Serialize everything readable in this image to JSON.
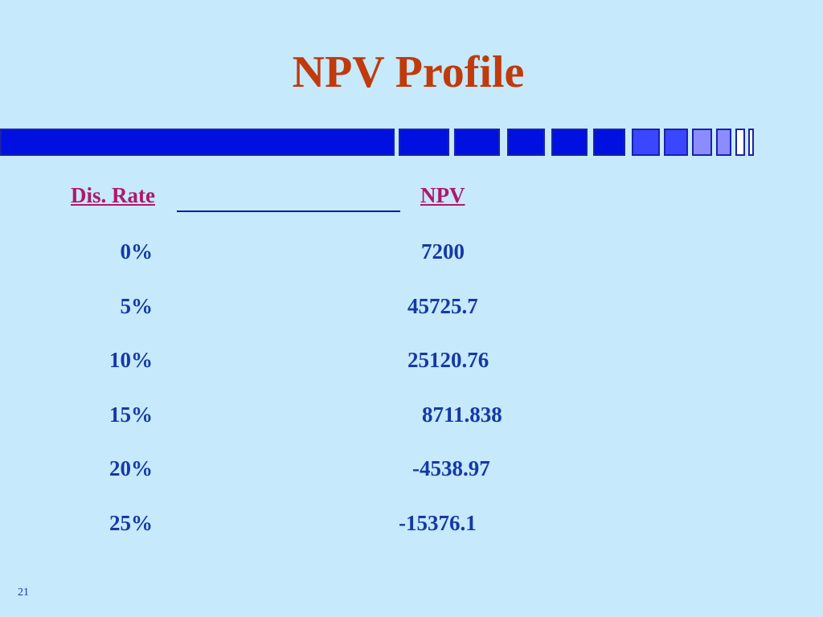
{
  "slide": {
    "title": "NPV Profile",
    "page_number": "21"
  },
  "table": {
    "headers": {
      "rate": "Dis. Rate",
      "npv": "NPV"
    },
    "rows": [
      {
        "rate": "0%",
        "npv": "7200"
      },
      {
        "rate": "5%",
        "npv": "45725.7"
      },
      {
        "rate": "10%",
        "npv": "25120.76"
      },
      {
        "rate": "15%",
        "npv": "8711.838"
      },
      {
        "rate": "20%",
        "npv": "-4538.97"
      },
      {
        "rate": "25%",
        "npv": "-15376.1"
      }
    ]
  },
  "colors": {
    "background": "#c6e9fb",
    "title": "#c03a0c",
    "header": "#b0186a",
    "body_text": "#1638a6",
    "bar_dark": "#0010e0",
    "bar_mid": "#2a36ff",
    "bar_light": "#8a8cff"
  }
}
